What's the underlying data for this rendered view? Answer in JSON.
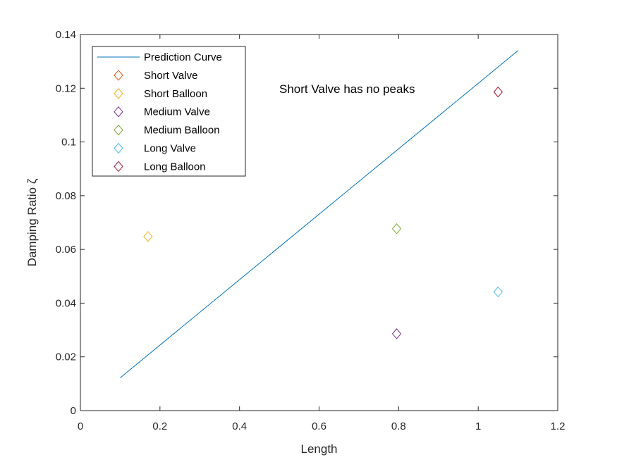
{
  "chart_data": {
    "type": "scatter",
    "title": "",
    "xlabel": "Length",
    "ylabel": "Damping Ratio ζ",
    "xlim": [
      0,
      1.2
    ],
    "ylim": [
      0,
      0.14
    ],
    "xticks": [
      "0",
      "0.2",
      "0.4",
      "0.6",
      "0.8",
      "1",
      "1.2"
    ],
    "yticks": [
      "0",
      "0.02",
      "0.04",
      "0.06",
      "0.08",
      "0.1",
      "0.12",
      "0.14"
    ],
    "grid": false,
    "legend_location": "top-left",
    "annotation": "Short Valve has no peaks",
    "prediction_curve": {
      "name": "Prediction Curve",
      "color": "#0072BD",
      "x": [
        0.1,
        1.1
      ],
      "y": [
        0.0122,
        0.134
      ]
    },
    "series": [
      {
        "name": "Short Valve",
        "marker": "diamond",
        "color": "#D95319",
        "x": [],
        "y": []
      },
      {
        "name": "Short Balloon",
        "marker": "diamond",
        "color": "#EDB120",
        "x": [
          0.17
        ],
        "y": [
          0.0648
        ]
      },
      {
        "name": "Medium Valve",
        "marker": "diamond",
        "color": "#7E2F8E",
        "x": [
          0.795
        ],
        "y": [
          0.0286
        ]
      },
      {
        "name": "Medium Balloon",
        "marker": "diamond",
        "color": "#77AC30",
        "x": [
          0.795
        ],
        "y": [
          0.0677
        ]
      },
      {
        "name": "Long Valve",
        "marker": "diamond",
        "color": "#4DBEEE",
        "x": [
          1.05
        ],
        "y": [
          0.0442
        ]
      },
      {
        "name": "Long Balloon",
        "marker": "diamond",
        "color": "#A2142F",
        "x": [
          1.05
        ],
        "y": [
          0.1186
        ]
      }
    ]
  }
}
